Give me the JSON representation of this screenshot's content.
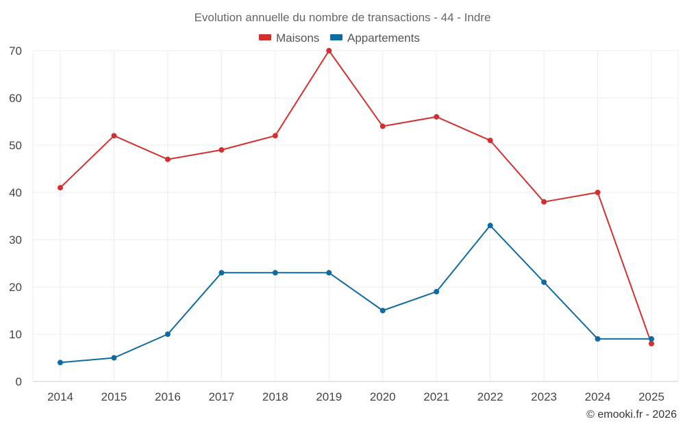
{
  "chart_data": {
    "type": "line",
    "title": "Evolution annuelle du nombre de transactions - 44 - Indre",
    "categories": [
      "2014",
      "2015",
      "2016",
      "2017",
      "2018",
      "2019",
      "2020",
      "2021",
      "2022",
      "2023",
      "2024",
      "2025"
    ],
    "series": [
      {
        "name": "Maisons",
        "color": "#d32f2f",
        "values": [
          41,
          52,
          47,
          49,
          52,
          70,
          54,
          56,
          51,
          38,
          40,
          8
        ]
      },
      {
        "name": "Appartements",
        "color": "#0e6aa0",
        "values": [
          4,
          5,
          10,
          23,
          23,
          23,
          15,
          19,
          33,
          21,
          9,
          9
        ]
      }
    ],
    "ylim": [
      0,
      70
    ],
    "yticks": [
      0,
      10,
      20,
      30,
      40,
      50,
      60,
      70
    ],
    "grid": true,
    "legend_position": "top-center",
    "xlabel": "",
    "ylabel": ""
  },
  "credit": "© emooki.fr - 2026"
}
